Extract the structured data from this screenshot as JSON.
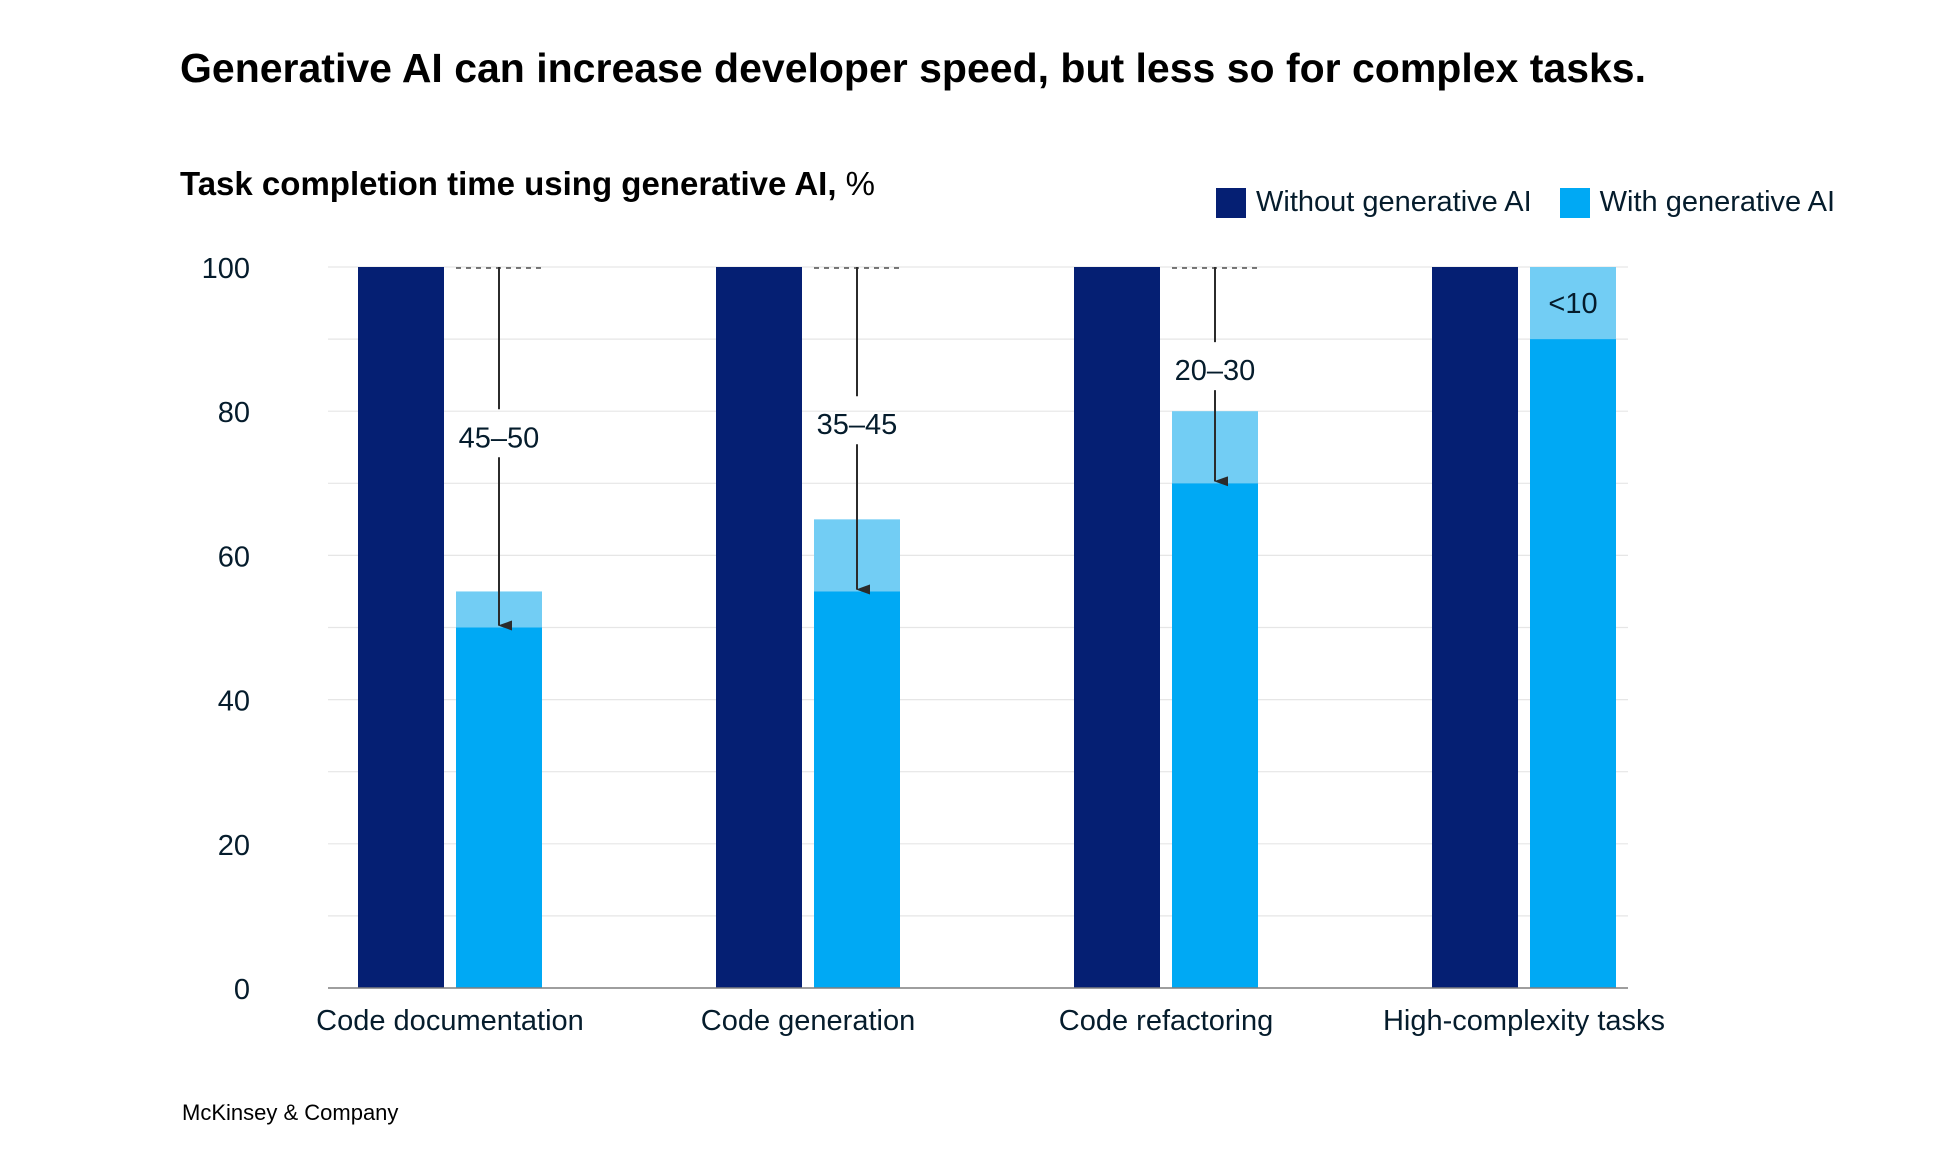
{
  "title": "Generative AI can increase developer speed, but less so for complex tasks.",
  "subtitle": {
    "main": "Task completion time using generative AI,",
    "unit": "%"
  },
  "footer": "McKinsey & Company",
  "colors": {
    "without": "#051f73",
    "with": "#00a9f4",
    "reduction_band": "#72cdf4",
    "gridline": "#e6e6e6",
    "axis": "#7f7f7f",
    "text": "#051c2c"
  },
  "chart_data": {
    "type": "bar",
    "title": "Task completion time using generative AI, %",
    "xlabel": "",
    "ylabel": "",
    "ylim": [
      0,
      100
    ],
    "yticks": [
      0,
      20,
      40,
      60,
      80,
      100
    ],
    "grid": true,
    "legend_position": "top-right",
    "categories": [
      "Code documentation",
      "Code generation",
      "Code refactoring",
      "High-complexity tasks"
    ],
    "series": [
      {
        "name": "Without generative AI",
        "values": [
          100,
          100,
          100,
          100
        ]
      },
      {
        "name": "With generative AI",
        "values": [
          50,
          55,
          70,
          90
        ]
      }
    ],
    "range_bands": [
      {
        "category": "Code documentation",
        "low": 50,
        "high": 55
      },
      {
        "category": "Code generation",
        "low": 55,
        "high": 65
      },
      {
        "category": "Code refactoring",
        "low": 70,
        "high": 80
      },
      {
        "category": "High-complexity tasks",
        "low": 90,
        "high": 100
      }
    ],
    "annotations": [
      {
        "category": "Code documentation",
        "label": "45–50"
      },
      {
        "category": "Code generation",
        "label": "35–45"
      },
      {
        "category": "Code refactoring",
        "label": "20–30"
      },
      {
        "category": "High-complexity tasks",
        "label": "<10"
      }
    ]
  }
}
